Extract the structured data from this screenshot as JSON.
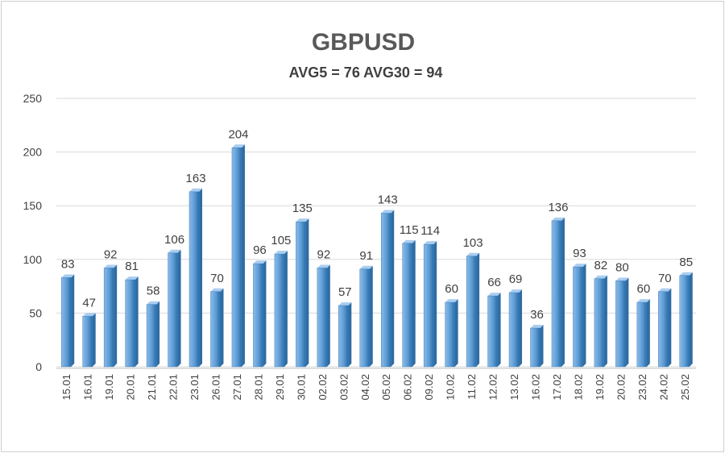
{
  "chart_data": {
    "type": "bar",
    "title": "GBPUSD",
    "subtitle": "AVG5 = 76 AVG30 = 94",
    "xlabel": "",
    "ylabel": "",
    "ylim": [
      0,
      250
    ],
    "yticks": [
      0,
      50,
      100,
      150,
      200,
      250
    ],
    "grid": true,
    "legend": "none",
    "categories": [
      "15.01",
      "16.01",
      "19.01",
      "20.01",
      "21.01",
      "22.01",
      "23.01",
      "26.01",
      "27.01",
      "28.01",
      "29.01",
      "30.01",
      "02.02",
      "03.02",
      "04.02",
      "05.02",
      "06.02",
      "09.02",
      "10.02",
      "11.02",
      "12.02",
      "13.02",
      "16.02",
      "17.02",
      "18.02",
      "19.02",
      "20.02",
      "23.02",
      "24.02",
      "25.02"
    ],
    "values": [
      83,
      47,
      92,
      81,
      58,
      106,
      163,
      70,
      204,
      96,
      105,
      135,
      92,
      57,
      91,
      143,
      115,
      114,
      60,
      103,
      66,
      69,
      36,
      136,
      93,
      82,
      80,
      60,
      70,
      85
    ],
    "colors": {
      "bar_fill": "#5b9bd5",
      "bar_light": "#8cbbe6",
      "bar_dark": "#2e6da4",
      "grid": "#d9d9d9",
      "axis": "#bfbfbf"
    }
  }
}
